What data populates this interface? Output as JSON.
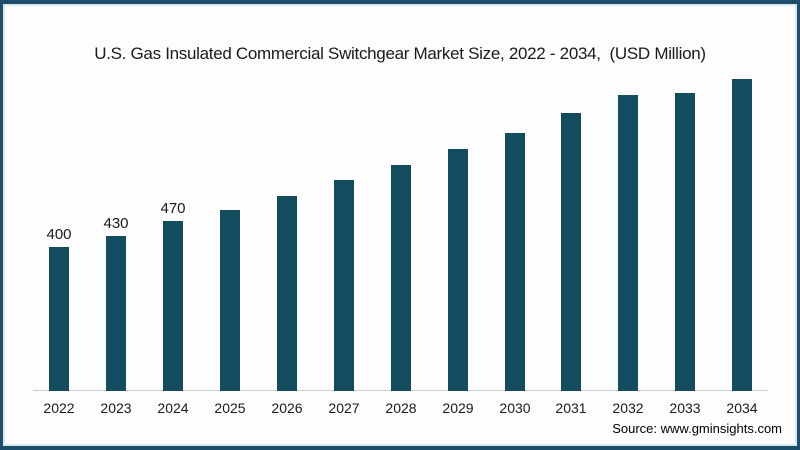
{
  "title": "U.S. Gas Insulated Commercial Switchgear Market Size, 2022 - 2034,  (USD Million)",
  "source": "Source: www.gminsights.com",
  "colors": {
    "bar": "#134c5e",
    "frame_border": "#1c4e6b",
    "frame_inner_line": "#d9e7f0",
    "axis_line": "#cccccc",
    "text": "#1a1a1a",
    "background": "#fdfdfd"
  },
  "chart_data": {
    "type": "bar",
    "title": "U.S. Gas Insulated Commercial Switchgear Market Size, 2022 - 2034, (USD Million)",
    "ylabel": "USD Million",
    "xlabel": "",
    "categories": [
      "2022",
      "2023",
      "2024",
      "2025",
      "2026",
      "2027",
      "2028",
      "2029",
      "2030",
      "2031",
      "2032",
      "2033",
      "2034"
    ],
    "values": [
      400,
      430,
      470,
      500,
      540,
      585,
      625,
      670,
      715,
      770,
      820,
      825,
      865
    ],
    "data_labels": {
      "2022": "400",
      "2023": "430",
      "2024": "470"
    },
    "ylim": [
      0,
      900
    ],
    "grid": false,
    "legend": false,
    "source": "Source: www.gminsights.com"
  }
}
